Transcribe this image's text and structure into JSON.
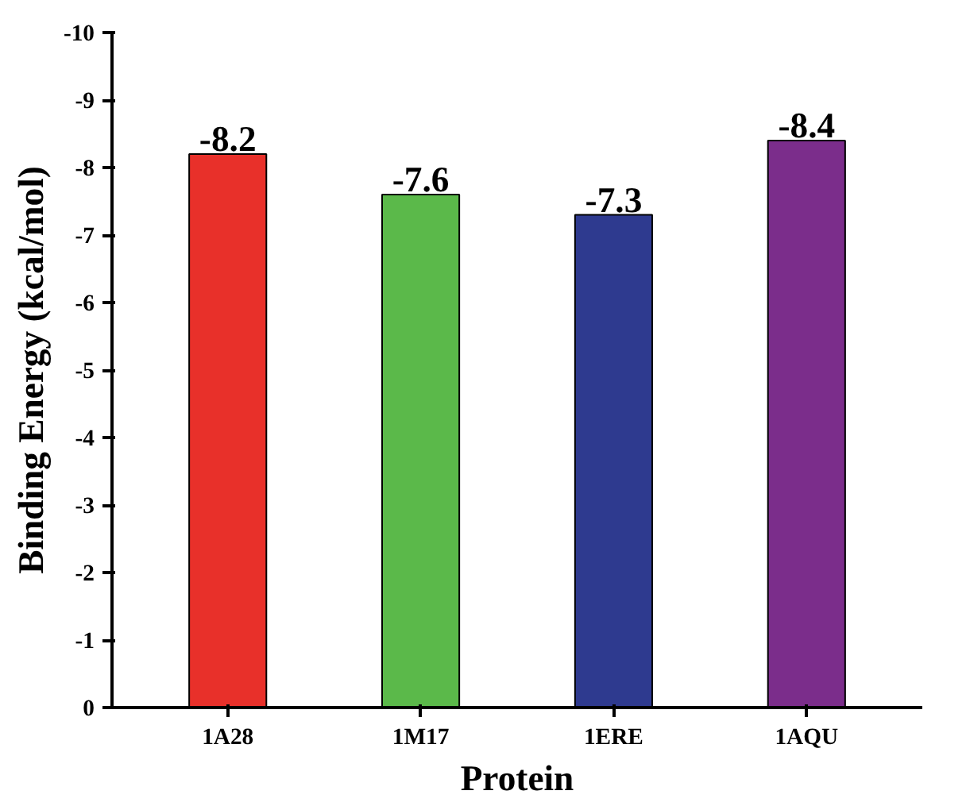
{
  "chart_data": {
    "type": "bar",
    "xlabel": "Protein",
    "ylabel": "Binding Energy (kcal/mol)",
    "categories": [
      "1A28",
      "1M17",
      "1ERE",
      "1AQU"
    ],
    "values": [
      -8.2,
      -7.6,
      -7.3,
      -8.4
    ],
    "colors": [
      "#e8302a",
      "#5bb94a",
      "#2e3a8f",
      "#7b2d8b"
    ],
    "ylim": [
      0,
      -10
    ],
    "yticks": [
      0,
      -1,
      -2,
      -3,
      -4,
      -5,
      -6,
      -7,
      -8,
      -9,
      -10
    ],
    "data_labels": true
  }
}
